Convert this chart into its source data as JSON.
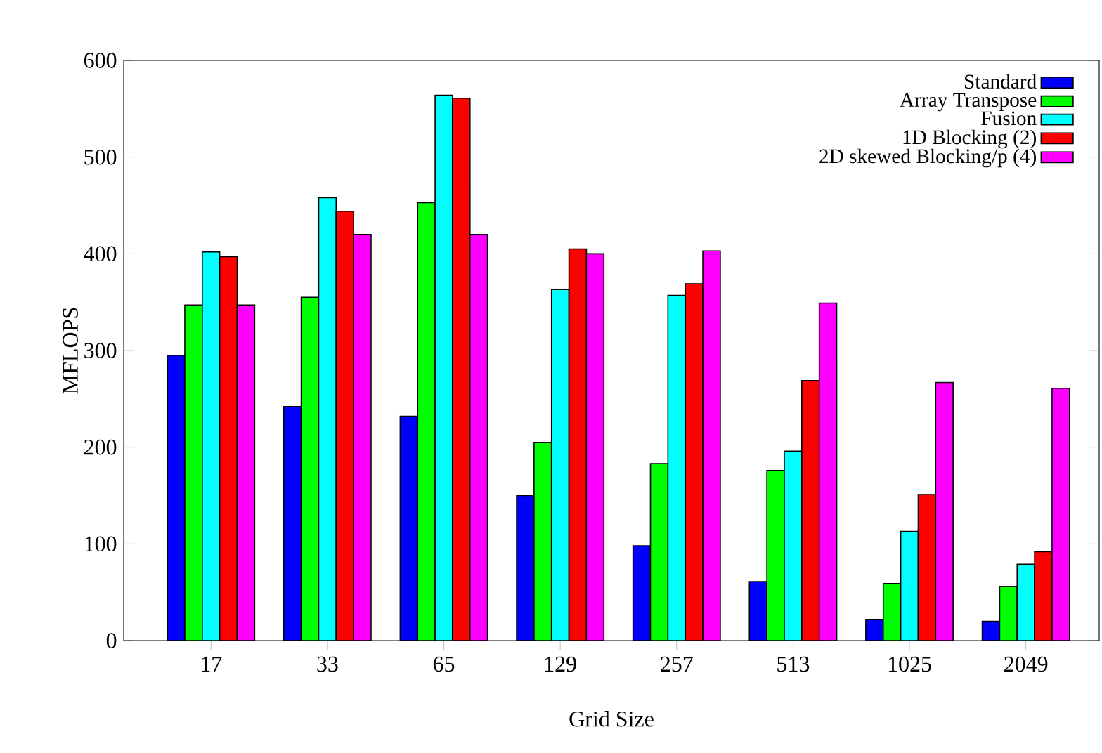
{
  "chart_data": {
    "type": "bar",
    "xlabel": "Grid Size",
    "ylabel": "MFLOPS",
    "categories": [
      "17",
      "33",
      "65",
      "129",
      "257",
      "513",
      "1025",
      "2049"
    ],
    "series": [
      {
        "name": "Standard",
        "color": "#0000ff",
        "values": [
          295,
          242,
          232,
          150,
          98,
          61,
          22,
          20
        ]
      },
      {
        "name": "Array Transpose",
        "color": "#00ff00",
        "values": [
          347,
          355,
          453,
          205,
          183,
          176,
          59,
          56
        ]
      },
      {
        "name": "Fusion",
        "color": "#00ffff",
        "values": [
          402,
          458,
          564,
          363,
          357,
          196,
          113,
          79
        ]
      },
      {
        "name": "1D Blocking (2)",
        "color": "#ff0000",
        "values": [
          397,
          444,
          561,
          405,
          369,
          269,
          151,
          92
        ]
      },
      {
        "name": "2D skewed Blocking/p (4)",
        "color": "#ff00ff",
        "values": [
          347,
          420,
          420,
          400,
          403,
          349,
          267,
          261
        ]
      }
    ],
    "ylim": [
      0,
      600
    ],
    "yticks": [
      0,
      100,
      200,
      300,
      400,
      500,
      600
    ],
    "legend": "top right"
  }
}
